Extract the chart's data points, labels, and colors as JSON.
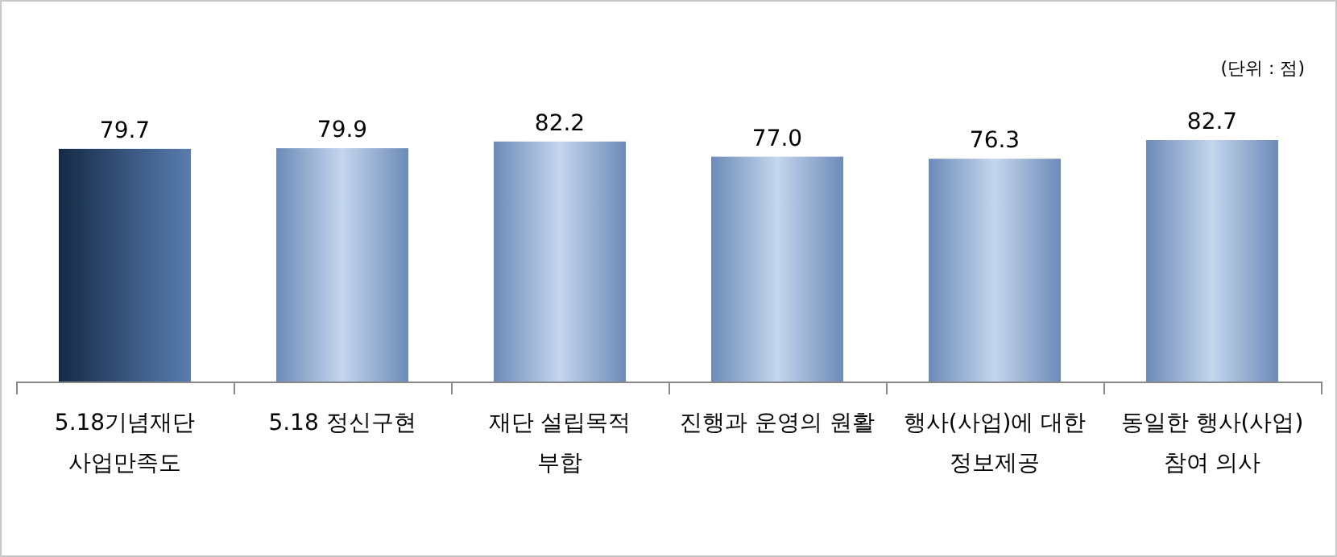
{
  "chart_data": {
    "type": "bar",
    "relative": false,
    "value_labels": [
      "79.7",
      "79.9",
      "82.2",
      "77.0",
      "76.3",
      "82.7"
    ],
    "categories": [
      "5.18기념재단\n사업만족도",
      "5.18 정신구현",
      "재단 설립목적\n부합",
      "진행과 운영의 원활",
      "행사(사업)에 대한\n정보제공",
      "동일한 행사(사업)\n참여 의사"
    ],
    "values": [
      79.7,
      79.9,
      82.2,
      77.0,
      76.3,
      82.7
    ],
    "colors": [
      "#2f5d9c",
      "#7fa3d8",
      "#7fa3d8",
      "#7fa3d8",
      "#7fa3d8",
      "#7fa3d8"
    ],
    "annotations": [
      "(단위 : 점)"
    ]
  }
}
